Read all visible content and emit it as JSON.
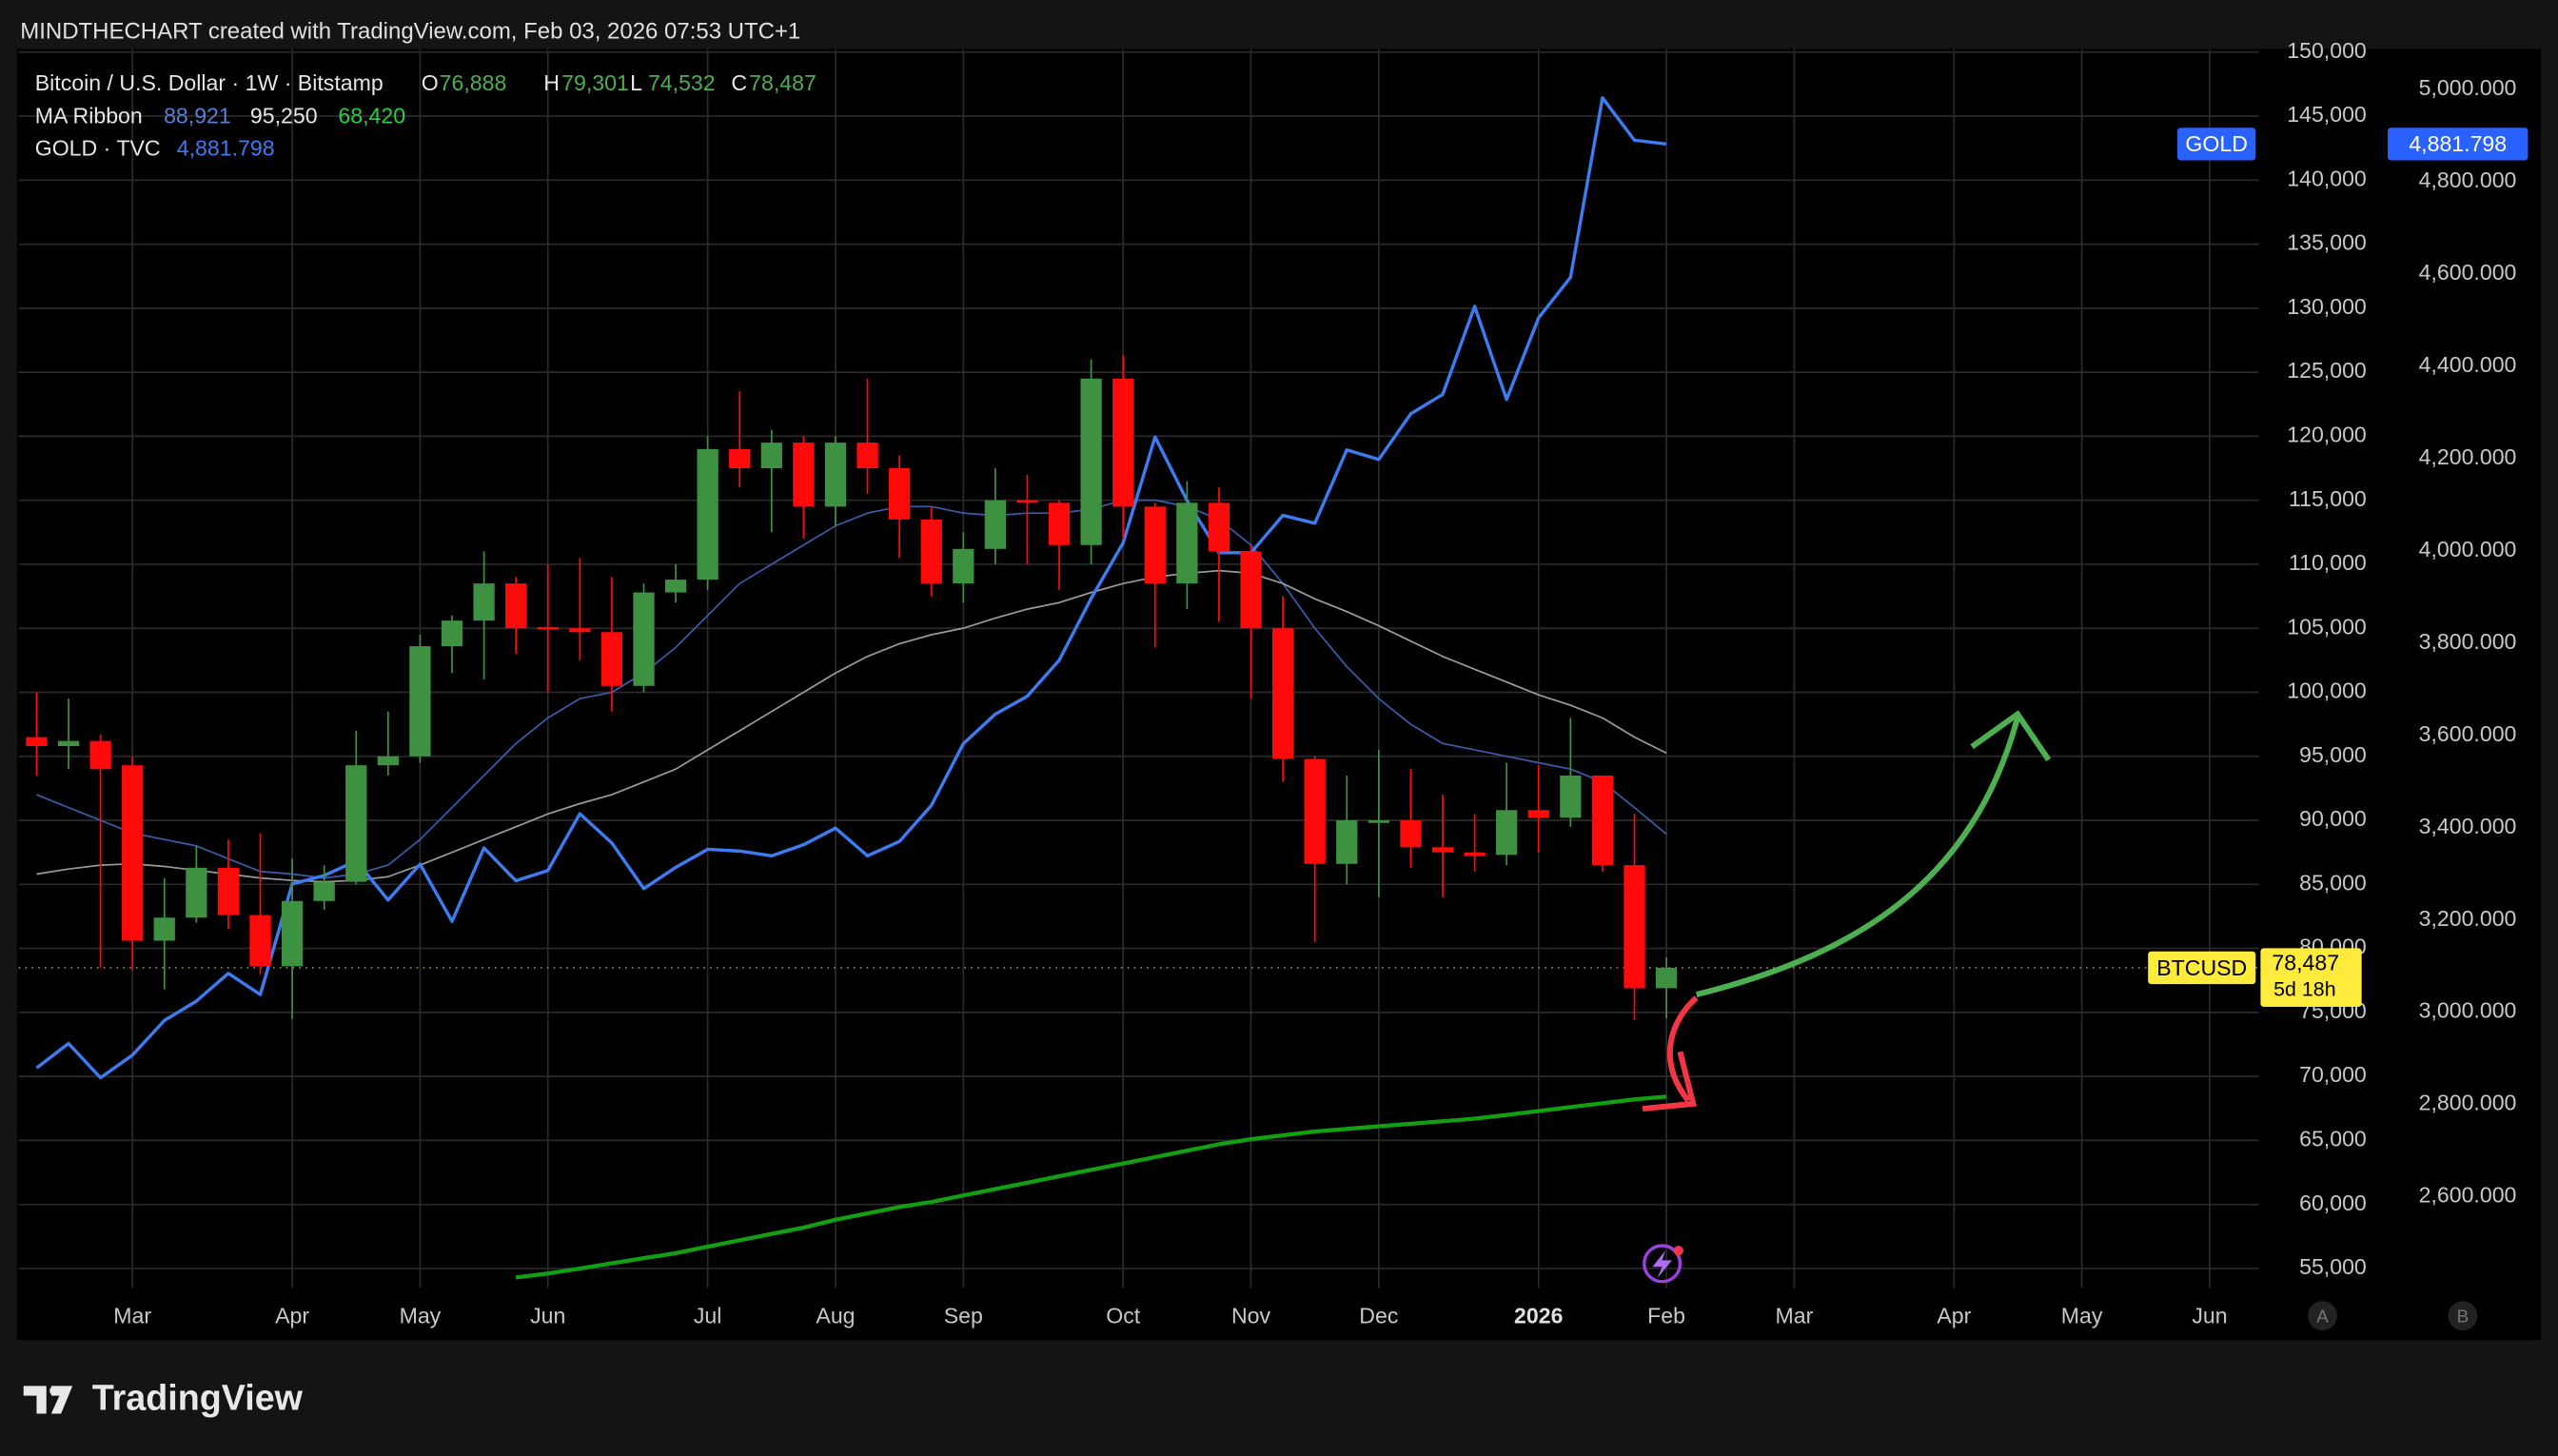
{
  "header": "MINDTHECHART created with TradingView.com, Feb 03, 2026 07:53 UTC+1",
  "footer": "TradingView",
  "chart_data": {
    "type": "candlestick",
    "legend": {
      "symbol": "Bitcoin / U.S. Dollar · 1W · Bitstamp",
      "ohlc": [
        {
          "key": "O",
          "label": "76,888"
        },
        {
          "key": "H",
          "label": "79,301"
        },
        {
          "key": "L",
          "label": "74,532"
        },
        {
          "key": "C",
          "label": "78,487"
        }
      ],
      "ma_name": "MA Ribbon",
      "ma_labels": [
        "88,921",
        "95,250",
        "68,420"
      ],
      "gold_name": "GOLD · TVC",
      "gold_label": "4,881.798"
    },
    "price_tag": {
      "label": "BTCUSD",
      "value_label": "78,487",
      "countdown": "5d 18h"
    },
    "gold_tag": {
      "label": "GOLD",
      "value_label": "4,881.798"
    },
    "grid": true,
    "categories": [
      null,
      null,
      null,
      "Mar",
      null,
      null,
      null,
      null,
      "Apr",
      null,
      null,
      null,
      "May",
      null,
      null,
      null,
      "Jun",
      null,
      null,
      null,
      null,
      "Jul",
      null,
      null,
      null,
      "Aug",
      null,
      null,
      null,
      "Sep",
      null,
      null,
      null,
      null,
      "Oct",
      null,
      null,
      null,
      "Nov",
      null,
      null,
      null,
      "Dec",
      null,
      null,
      null,
      null,
      "2026",
      null,
      null,
      null,
      "Feb",
      null,
      null,
      null,
      "Mar",
      null,
      null,
      null,
      null,
      "Apr",
      null,
      null,
      null,
      "May",
      null,
      null,
      null,
      "Jun"
    ],
    "candles": {
      "up_color": "#3f9142",
      "down_color": "#ff0a0a",
      "open": [
        96500,
        95800,
        96200,
        94300,
        80600,
        82400,
        86300,
        82600,
        78600,
        83700,
        85200,
        94300,
        95000,
        103600,
        105600,
        108500,
        105100,
        105000,
        104700,
        100500,
        107800,
        108800,
        119000,
        117500,
        119500,
        114500,
        119500,
        117500,
        113500,
        108500,
        111200,
        115000,
        114800,
        111500,
        124500,
        114500,
        108500,
        114800,
        111000,
        105000,
        94800,
        86600,
        89800,
        90000,
        87900,
        87500,
        87300,
        90800,
        90200,
        93500,
        86500,
        76888,
        null,
        null,
        null,
        null,
        null,
        null,
        null,
        null,
        null,
        null,
        null,
        null,
        null,
        null,
        null,
        null,
        null
      ],
      "high": [
        100000,
        99500,
        96700,
        95000,
        85500,
        88000,
        88500,
        89000,
        87000,
        86500,
        97000,
        98500,
        104500,
        106000,
        111000,
        109000,
        110000,
        110500,
        109000,
        108500,
        110000,
        120000,
        123500,
        120500,
        120000,
        120000,
        124500,
        118500,
        114500,
        112500,
        117500,
        117000,
        115000,
        126000,
        126300,
        114800,
        116500,
        116000,
        111500,
        107500,
        95000,
        93500,
        95500,
        94000,
        92000,
        90500,
        94500,
        94300,
        98000,
        93500,
        90500,
        79301,
        null,
        null,
        null,
        null,
        null,
        null,
        null,
        null,
        null,
        null,
        null,
        null,
        null,
        null,
        null,
        null,
        null
      ],
      "low": [
        93500,
        94000,
        78500,
        78300,
        76800,
        82000,
        81500,
        78000,
        74500,
        83000,
        85000,
        93500,
        94500,
        101500,
        101000,
        103000,
        100000,
        102500,
        98500,
        100000,
        107000,
        108000,
        116000,
        112500,
        112000,
        113000,
        115500,
        110500,
        107500,
        107000,
        110000,
        110000,
        108000,
        110000,
        112000,
        103500,
        106500,
        105500,
        99500,
        93000,
        80500,
        85000,
        84000,
        86300,
        84000,
        86000,
        86500,
        87500,
        89500,
        86000,
        74400,
        74532,
        null,
        null,
        null,
        null,
        null,
        null,
        null,
        null,
        null,
        null,
        null,
        null,
        null,
        null,
        null,
        null,
        null
      ],
      "close": [
        95800,
        96200,
        94000,
        80600,
        82400,
        86300,
        82600,
        78600,
        83700,
        85200,
        94300,
        95000,
        103600,
        105600,
        108500,
        105000,
        104900,
        104700,
        100500,
        107800,
        108800,
        119000,
        117500,
        119500,
        114500,
        119500,
        117500,
        113500,
        108500,
        111200,
        115000,
        114800,
        111500,
        124500,
        114500,
        108500,
        114800,
        111000,
        105000,
        94800,
        86600,
        90000,
        90000,
        87900,
        87500,
        87200,
        90800,
        90200,
        93500,
        86500,
        76888,
        78487,
        null,
        null,
        null,
        null,
        null,
        null,
        null,
        null,
        null,
        null,
        null,
        null,
        null,
        null,
        null,
        null,
        null
      ]
    },
    "lines": [
      {
        "color": "#3b5cab",
        "width": 1,
        "values": [
          92000,
          91000,
          90000,
          89000,
          88500,
          88000,
          87000,
          86000,
          85800,
          85500,
          85800,
          86500,
          88500,
          91000,
          93500,
          96000,
          98000,
          99500,
          100000,
          101500,
          103500,
          106000,
          108500,
          110000,
          111500,
          113000,
          114000,
          114500,
          114500,
          114000,
          113800,
          114000,
          114000,
          114300,
          115000,
          115000,
          114500,
          113500,
          111500,
          108500,
          105000,
          102000,
          99500,
          97500,
          96000,
          95500,
          95000,
          94500,
          94000,
          93000,
          91000,
          88921,
          null,
          null,
          null,
          null,
          null,
          null,
          null,
          null,
          null,
          null,
          null,
          null,
          null,
          null,
          null,
          null,
          null
        ]
      },
      {
        "color": "#9a9a9a",
        "width": 1,
        "values": [
          85800,
          86200,
          86500,
          86600,
          86400,
          86100,
          85800,
          85500,
          85300,
          85200,
          85300,
          85600,
          86500,
          87500,
          88500,
          89500,
          90500,
          91300,
          92000,
          93000,
          94000,
          95500,
          97000,
          98500,
          100000,
          101500,
          102800,
          103800,
          104500,
          105000,
          105800,
          106500,
          107000,
          107800,
          108500,
          109000,
          109300,
          109500,
          109300,
          108500,
          107300,
          106300,
          105200,
          104000,
          102800,
          101800,
          100800,
          99800,
          99000,
          98000,
          96500,
          95250,
          null,
          null,
          null,
          null,
          null,
          null,
          null,
          null,
          null,
          null,
          null,
          null,
          null,
          null,
          null,
          null,
          null
        ]
      },
      {
        "color": "#12a012",
        "width": 2.5,
        "values": [
          null,
          null,
          null,
          null,
          null,
          null,
          null,
          null,
          null,
          null,
          null,
          null,
          null,
          null,
          null,
          54300,
          54600,
          55000,
          55400,
          55800,
          56200,
          56700,
          57200,
          57700,
          58200,
          58800,
          59300,
          59800,
          60200,
          60700,
          61200,
          61700,
          62200,
          62700,
          63200,
          63700,
          64200,
          64700,
          65100,
          65400,
          65700,
          65900,
          66100,
          66300,
          66500,
          66700,
          67000,
          67300,
          67600,
          67900,
          68200,
          68420,
          null,
          null,
          null,
          null,
          null,
          null,
          null,
          null,
          null,
          null,
          null,
          null,
          null,
          null,
          null,
          null,
          null
        ]
      },
      {
        "color": "#3d7cf0",
        "width": 2,
        "axis": "y2",
        "values": [
          2879,
          2932,
          2858,
          2907,
          2982,
          3024,
          3084,
          3038,
          3278,
          3296,
          3328,
          3243,
          3321,
          3197,
          3356,
          3285,
          3307,
          3430,
          3367,
          3268,
          3314,
          3353,
          3349,
          3339,
          3363,
          3399,
          3339,
          3370,
          3448,
          3582,
          3646,
          3685,
          3763,
          3897,
          4017,
          4247,
          4109,
          3996,
          3996,
          4077,
          4060,
          4219,
          4198,
          4297,
          4339,
          4530,
          4328,
          4505,
          4593,
          4982,
          4890,
          4881.798,
          null,
          null,
          null,
          null,
          null,
          null,
          null,
          null,
          null,
          null,
          null,
          null,
          null,
          null,
          null,
          null,
          null
        ]
      }
    ],
    "ylim": [
      53470,
      150250
    ],
    "yticks": [
      {
        "value": 55000,
        "label": "55,000"
      },
      {
        "value": 60000,
        "label": "60,000"
      },
      {
        "value": 65000,
        "label": "65,000"
      },
      {
        "value": 70000,
        "label": "70,000"
      },
      {
        "value": 75000,
        "label": "75,000"
      },
      {
        "value": 80000,
        "label": "80,000"
      },
      {
        "value": 85000,
        "label": "85,000"
      },
      {
        "value": 90000,
        "label": "90,000"
      },
      {
        "value": 95000,
        "label": "95,000"
      },
      {
        "value": 100000,
        "label": "100,000"
      },
      {
        "value": 105000,
        "label": "105,000"
      },
      {
        "value": 110000,
        "label": "110,000"
      },
      {
        "value": 115000,
        "label": "115,000"
      },
      {
        "value": 120000,
        "label": "120,000"
      },
      {
        "value": 125000,
        "label": "125,000"
      },
      {
        "value": 130000,
        "label": "130,000"
      },
      {
        "value": 135000,
        "label": "135,000"
      },
      {
        "value": 140000,
        "label": "140,000"
      },
      {
        "value": 145000,
        "label": "145,000"
      },
      {
        "value": 150000,
        "label": "150,000"
      }
    ],
    "y2lim": [
      2402,
      5088
    ],
    "y2ticks": [
      {
        "value": 2600,
        "label": "2,600.000"
      },
      {
        "value": 2800,
        "label": "2,800.000"
      },
      {
        "value": 3000,
        "label": "3,000.000"
      },
      {
        "value": 3200,
        "label": "3,200.000"
      },
      {
        "value": 3400,
        "label": "3,400.000"
      },
      {
        "value": 3600,
        "label": "3,600.000"
      },
      {
        "value": 3800,
        "label": "3,800.000"
      },
      {
        "value": 4000,
        "label": "4,000.000"
      },
      {
        "value": 4200,
        "label": "4,200.000"
      },
      {
        "value": 4400,
        "label": "4,400.000"
      },
      {
        "value": 4600,
        "label": "4,600.000"
      },
      {
        "value": 4800,
        "label": "4,800.000"
      },
      {
        "value": 5000,
        "label": "5,000.000"
      }
    ]
  }
}
